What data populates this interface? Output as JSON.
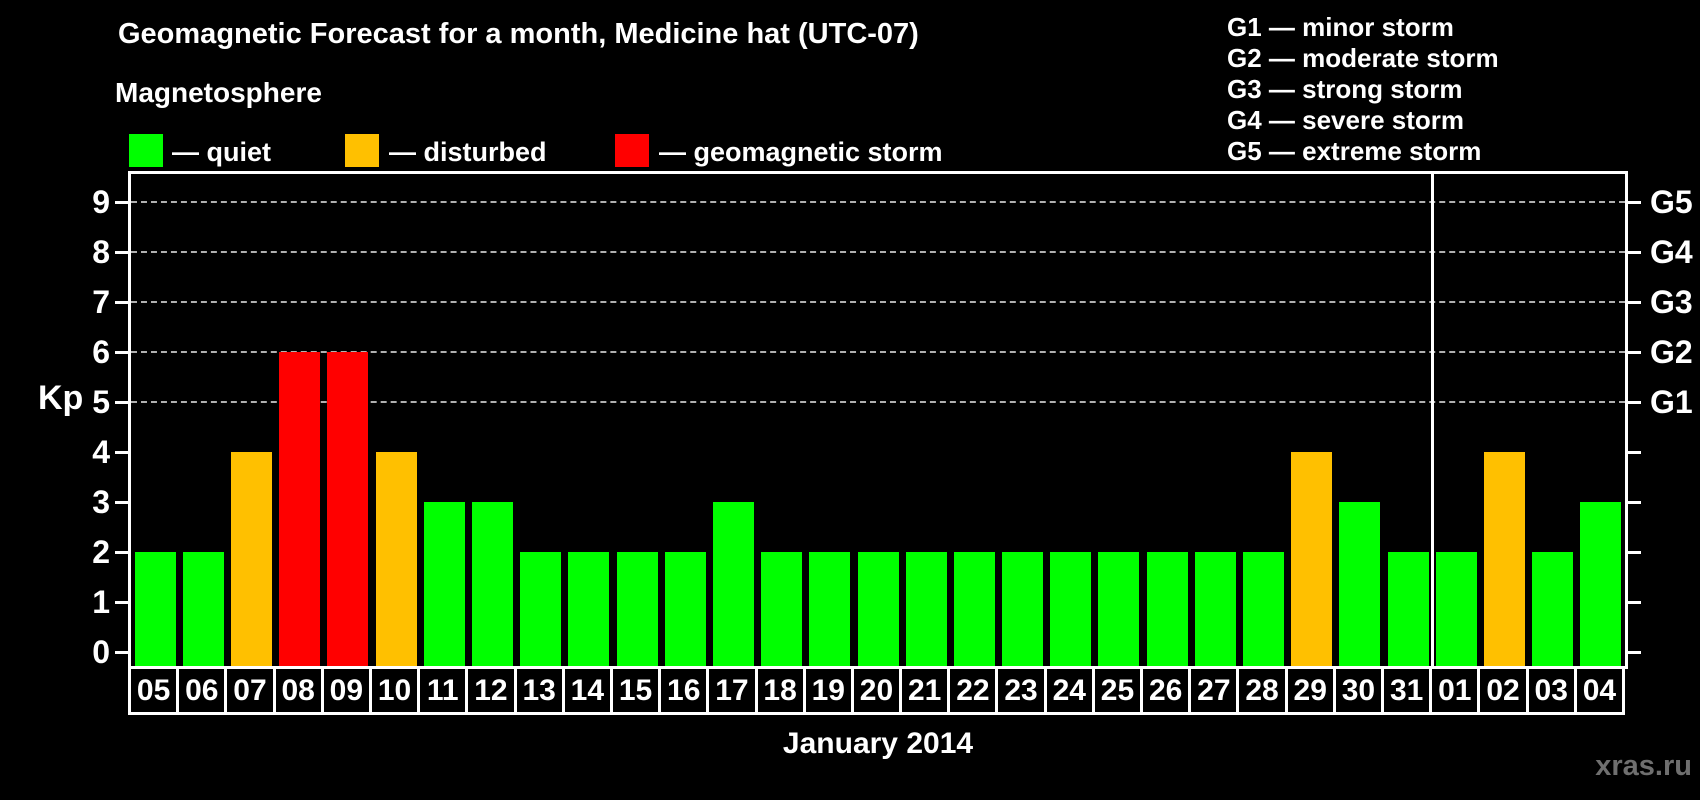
{
  "title": "Geomagnetic Forecast for a month, Medicine hat (UTC-07)",
  "subtitle": "Magnetosphere",
  "legend": {
    "quiet_label": "— quiet",
    "disturbed_label": "— disturbed",
    "storm_label": "— geomagnetic storm"
  },
  "g_legend": [
    "G1 — minor storm",
    "G2 — moderate storm",
    "G3 — strong storm",
    "G4 — severe storm",
    "G5 — extreme storm"
  ],
  "watermark": "xras.ru",
  "colors": {
    "quiet": "#00ff00",
    "disturbed": "#ffc000",
    "storm": "#ff0000",
    "axis": "#ffffff",
    "gridline": "#b0b0b0",
    "background": "#000000",
    "watermark": "#6f6f6f"
  },
  "chart_data": {
    "type": "bar",
    "title": "Geomagnetic Forecast for a month, Medicine hat (UTC-07)",
    "xlabel": "January 2014",
    "ylabel": "Kp",
    "ylim": [
      0,
      9
    ],
    "yticks": [
      0,
      1,
      2,
      3,
      4,
      5,
      6,
      7,
      8,
      9
    ],
    "gridlines_at": [
      5,
      6,
      7,
      8,
      9
    ],
    "grid": "dashed horizontal at storm levels only",
    "legend_position": "top",
    "right_axis_labels": [
      {
        "kp": 5,
        "label": "G1"
      },
      {
        "kp": 6,
        "label": "G2"
      },
      {
        "kp": 7,
        "label": "G3"
      },
      {
        "kp": 8,
        "label": "G4"
      },
      {
        "kp": 9,
        "label": "G5"
      }
    ],
    "categories": [
      "05",
      "06",
      "07",
      "08",
      "09",
      "10",
      "11",
      "12",
      "13",
      "14",
      "15",
      "16",
      "17",
      "18",
      "19",
      "20",
      "21",
      "22",
      "23",
      "24",
      "25",
      "26",
      "27",
      "28",
      "29",
      "30",
      "31",
      "01",
      "02",
      "03",
      "04"
    ],
    "values": [
      2,
      2,
      4,
      6,
      6,
      4,
      3,
      3,
      2,
      2,
      2,
      2,
      3,
      2,
      2,
      2,
      2,
      2,
      2,
      2,
      2,
      2,
      2,
      2,
      4,
      3,
      2,
      2,
      4,
      2,
      3
    ],
    "statuses": [
      "quiet",
      "quiet",
      "disturbed",
      "storm",
      "storm",
      "disturbed",
      "quiet",
      "quiet",
      "quiet",
      "quiet",
      "quiet",
      "quiet",
      "quiet",
      "quiet",
      "quiet",
      "quiet",
      "quiet",
      "quiet",
      "quiet",
      "quiet",
      "quiet",
      "quiet",
      "quiet",
      "quiet",
      "disturbed",
      "quiet",
      "quiet",
      "quiet",
      "disturbed",
      "quiet",
      "quiet"
    ],
    "month_separator_after_index": 26
  }
}
